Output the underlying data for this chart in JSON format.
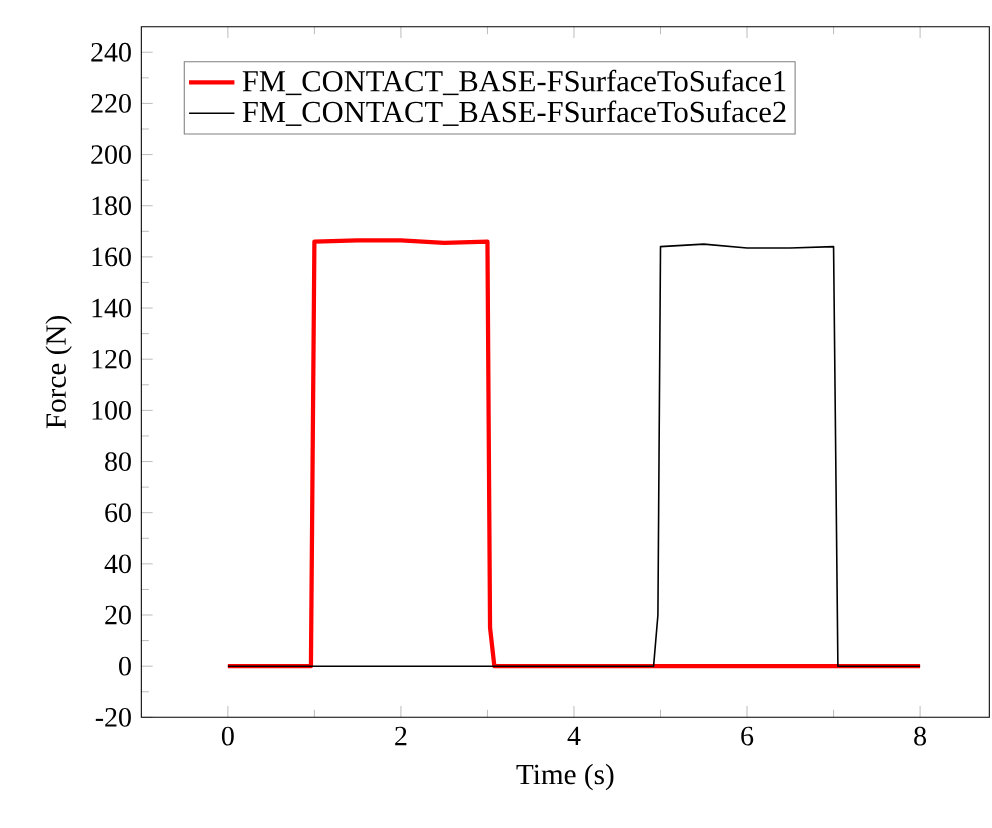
{
  "chart_data": {
    "type": "line",
    "xlabel": "Time (s)",
    "ylabel": "Force (N)",
    "xlim": [
      -1,
      8.8
    ],
    "ylim": [
      -20,
      250
    ],
    "xticks": [
      0,
      2,
      4,
      6,
      8
    ],
    "yticks": [
      -20,
      0,
      20,
      40,
      60,
      80,
      100,
      120,
      140,
      160,
      180,
      200,
      220,
      240
    ],
    "legend": "top left",
    "grid": false,
    "series": [
      {
        "name": "FM_CONTACT_BASE-FSurfaceToSuface1",
        "color": "#ff0000",
        "x": [
          0,
          0.96,
          1.0,
          1.5,
          2.0,
          2.5,
          3.0,
          3.03,
          3.08,
          5,
          8
        ],
        "values": [
          0,
          0,
          166,
          166.5,
          166.5,
          165.5,
          166,
          15,
          0,
          0,
          0
        ]
      },
      {
        "name": "FM_CONTACT_BASE-FSurfaceToSuface2",
        "color": "#000000",
        "x": [
          0,
          3,
          4.92,
          4.97,
          5.0,
          5.5,
          6.0,
          6.5,
          7.0,
          7.05,
          8
        ],
        "values": [
          0,
          0,
          0,
          20,
          164,
          165,
          163.5,
          163.5,
          164,
          0,
          0
        ]
      }
    ]
  }
}
